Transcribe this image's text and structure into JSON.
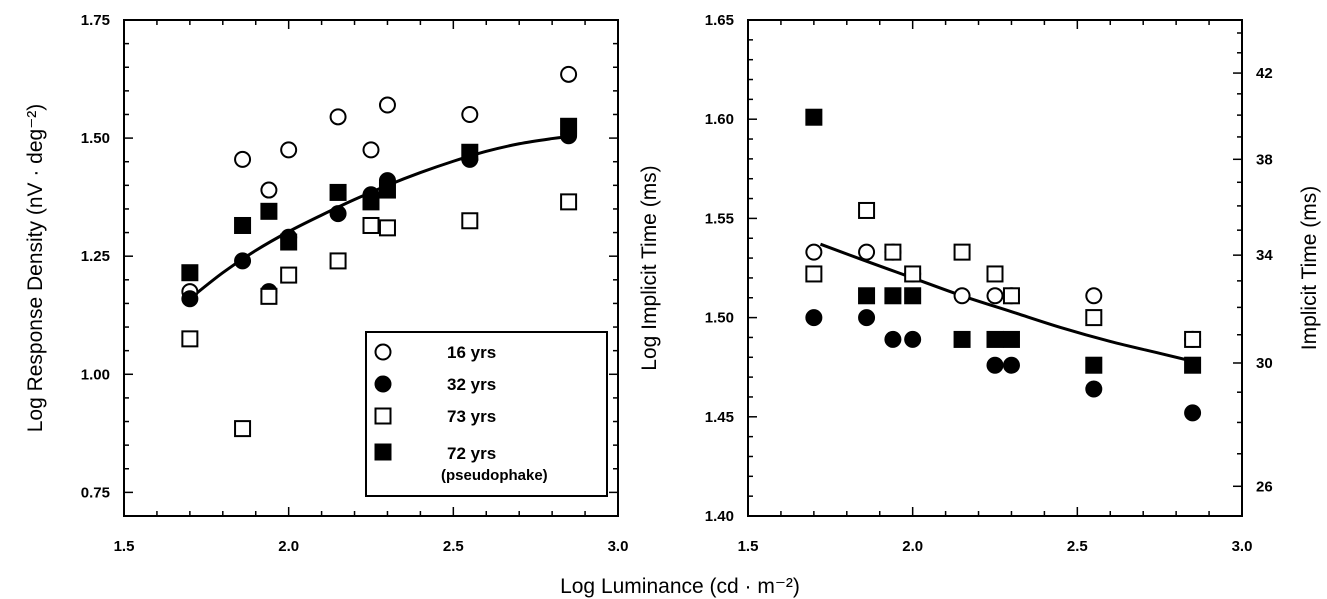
{
  "xlabel_shared": "Log Luminance (cd · m⁻²)",
  "chart_data": [
    {
      "type": "scatter",
      "ylabel": "Log Response Density (nV · deg⁻²)",
      "xlim": [
        1.5,
        3.0
      ],
      "ylim": [
        0.7,
        1.75
      ],
      "x_ticks": [
        "1.5",
        "2.0",
        "2.5",
        "3.0"
      ],
      "y_ticks": [
        "0.75",
        "1.00",
        "1.25",
        "1.50",
        "1.75"
      ],
      "series": [
        {
          "name": "16 yrs",
          "marker": "open-circle",
          "points": [
            [
              1.7,
              1.175
            ],
            [
              1.86,
              1.455
            ],
            [
              1.94,
              1.39
            ],
            [
              2.0,
              1.475
            ],
            [
              2.15,
              1.545
            ],
            [
              2.25,
              1.475
            ],
            [
              2.3,
              1.57
            ],
            [
              2.55,
              1.55
            ],
            [
              2.85,
              1.635
            ]
          ]
        },
        {
          "name": "32 yrs",
          "marker": "filled-circle",
          "points": [
            [
              1.7,
              1.16
            ],
            [
              1.86,
              1.24
            ],
            [
              1.94,
              1.175
            ],
            [
              2.0,
              1.29
            ],
            [
              2.15,
              1.34
            ],
            [
              2.25,
              1.38
            ],
            [
              2.3,
              1.41
            ],
            [
              2.55,
              1.455
            ],
            [
              2.85,
              1.505
            ]
          ]
        },
        {
          "name": "73 yrs",
          "marker": "open-square",
          "points": [
            [
              1.7,
              1.075
            ],
            [
              1.86,
              0.885
            ],
            [
              1.94,
              1.165
            ],
            [
              2.0,
              1.21
            ],
            [
              2.15,
              1.24
            ],
            [
              2.25,
              1.315
            ],
            [
              2.3,
              1.31
            ],
            [
              2.55,
              1.325
            ],
            [
              2.85,
              1.365
            ]
          ]
        },
        {
          "name": "72 yrs",
          "marker": "filled-square",
          "points": [
            [
              1.7,
              1.215
            ],
            [
              1.86,
              1.315
            ],
            [
              1.94,
              1.345
            ],
            [
              2.0,
              1.28
            ],
            [
              2.15,
              1.385
            ],
            [
              2.25,
              1.365
            ],
            [
              2.3,
              1.39
            ],
            [
              2.55,
              1.47
            ],
            [
              2.85,
              1.525
            ]
          ]
        }
      ],
      "fit_curve": [
        [
          1.7,
          1.16
        ],
        [
          1.8,
          1.215
        ],
        [
          1.9,
          1.262
        ],
        [
          2.0,
          1.302
        ],
        [
          2.1,
          1.337
        ],
        [
          2.2,
          1.37
        ],
        [
          2.3,
          1.4
        ],
        [
          2.4,
          1.427
        ],
        [
          2.5,
          1.451
        ],
        [
          2.6,
          1.472
        ],
        [
          2.7,
          1.488
        ],
        [
          2.8,
          1.499
        ],
        [
          2.85,
          1.503
        ]
      ],
      "legend": {
        "position": "bottom-right",
        "entries": [
          {
            "label": "16 yrs",
            "marker": "open-circle"
          },
          {
            "label": "32 yrs",
            "marker": "filled-circle"
          },
          {
            "label": "73 yrs",
            "marker": "open-square"
          },
          {
            "label": "72 yrs",
            "sublabel": "(pseudophake)",
            "marker": "filled-square"
          }
        ]
      }
    },
    {
      "type": "scatter",
      "ylabel": "Log Implicit Time (ms)",
      "y2label": "Implicit Time (ms)",
      "xlim": [
        1.5,
        3.0
      ],
      "ylim": [
        1.4,
        1.65
      ],
      "x_ticks": [
        "1.5",
        "2.0",
        "2.5",
        "3.0"
      ],
      "y_ticks": [
        "1.40",
        "1.45",
        "1.50",
        "1.55",
        "1.60",
        "1.65"
      ],
      "y2_ticks": [
        "26",
        "30",
        "34",
        "38",
        "42"
      ],
      "series": [
        {
          "name": "16 yrs",
          "marker": "open-circle",
          "points": [
            [
              1.7,
              1.533
            ],
            [
              1.86,
              1.533
            ],
            [
              1.94,
              1.533
            ],
            [
              2.0,
              1.522
            ],
            [
              2.15,
              1.511
            ],
            [
              2.25,
              1.511
            ],
            [
              2.3,
              1.511
            ],
            [
              2.55,
              1.511
            ],
            [
              2.85,
              1.489
            ]
          ]
        },
        {
          "name": "32 yrs",
          "marker": "filled-circle",
          "points": [
            [
              1.7,
              1.5
            ],
            [
              1.86,
              1.5
            ],
            [
              1.94,
              1.489
            ],
            [
              2.0,
              1.489
            ],
            [
              2.25,
              1.476
            ],
            [
              2.3,
              1.476
            ],
            [
              2.55,
              1.464
            ],
            [
              2.85,
              1.452
            ]
          ]
        },
        {
          "name": "73 yrs",
          "marker": "open-square",
          "points": [
            [
              1.7,
              1.522
            ],
            [
              1.86,
              1.554
            ],
            [
              1.94,
              1.533
            ],
            [
              2.0,
              1.522
            ],
            [
              2.15,
              1.533
            ],
            [
              2.25,
              1.522
            ],
            [
              2.3,
              1.511
            ],
            [
              2.55,
              1.5
            ],
            [
              2.85,
              1.489
            ]
          ]
        },
        {
          "name": "72 yrs",
          "marker": "filled-square",
          "points": [
            [
              1.7,
              1.601
            ],
            [
              1.86,
              1.511
            ],
            [
              1.94,
              1.511
            ],
            [
              2.0,
              1.511
            ],
            [
              2.15,
              1.489
            ],
            [
              2.25,
              1.489
            ],
            [
              2.3,
              1.489
            ],
            [
              2.55,
              1.476
            ],
            [
              2.85,
              1.476
            ]
          ]
        }
      ],
      "fit_curve": [
        [
          1.72,
          1.537
        ],
        [
          1.85,
          1.529
        ],
        [
          2.0,
          1.52
        ],
        [
          2.15,
          1.511
        ],
        [
          2.3,
          1.503
        ],
        [
          2.45,
          1.495
        ],
        [
          2.6,
          1.488
        ],
        [
          2.75,
          1.482
        ],
        [
          2.85,
          1.478
        ]
      ]
    }
  ]
}
